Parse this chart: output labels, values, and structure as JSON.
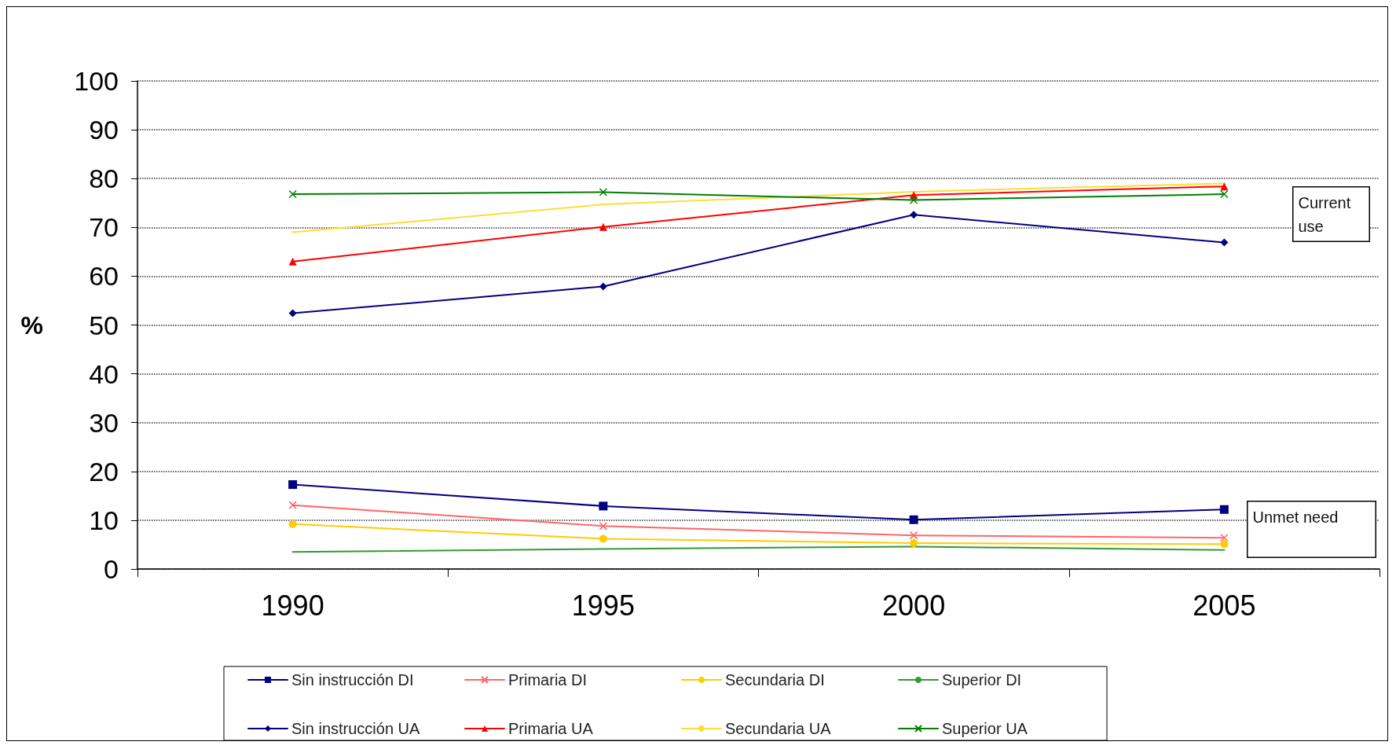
{
  "chart_data": {
    "type": "line",
    "ylabel": "%",
    "categories": [
      "1990",
      "1995",
      "2000",
      "2005"
    ],
    "ylim": [
      0,
      100
    ],
    "yticks": [
      0,
      10,
      20,
      30,
      40,
      50,
      60,
      70,
      80,
      90,
      100
    ],
    "grid": "y",
    "legend": "bottom",
    "annotations": [
      "Current use",
      "Unmet need"
    ],
    "series": [
      {
        "name": "Sin instrucción DI",
        "color": "#000080",
        "marker": "square",
        "values": [
          17.3,
          12.9,
          10.1,
          12.2
        ]
      },
      {
        "name": "Primaria DI",
        "color": "#ff6666",
        "marker": "cross",
        "values": [
          13.1,
          8.8,
          6.9,
          6.4
        ]
      },
      {
        "name": "Secundaria DI",
        "color": "#ffcc00",
        "marker": "circle",
        "values": [
          9.2,
          6.2,
          5.3,
          5.1
        ]
      },
      {
        "name": "Superior DI",
        "color": "#339933",
        "marker": "none",
        "values": [
          3.5,
          4.1,
          4.6,
          3.9
        ]
      },
      {
        "name": "Sin instrucción UA",
        "color": "#000080",
        "marker": "diamond",
        "values": [
          52.4,
          57.9,
          72.6,
          66.9
        ]
      },
      {
        "name": "Primaria UA",
        "color": "#ff0000",
        "marker": "triangle",
        "values": [
          63.0,
          70.1,
          76.6,
          78.4
        ]
      },
      {
        "name": "Secundaria UA",
        "color": "#ffdd33",
        "marker": "none",
        "values": [
          69.0,
          74.7,
          77.3,
          79.0
        ]
      },
      {
        "name": "Superior UA",
        "color": "#008000",
        "marker": "cross",
        "values": [
          76.8,
          77.2,
          75.6,
          76.8
        ]
      }
    ]
  }
}
